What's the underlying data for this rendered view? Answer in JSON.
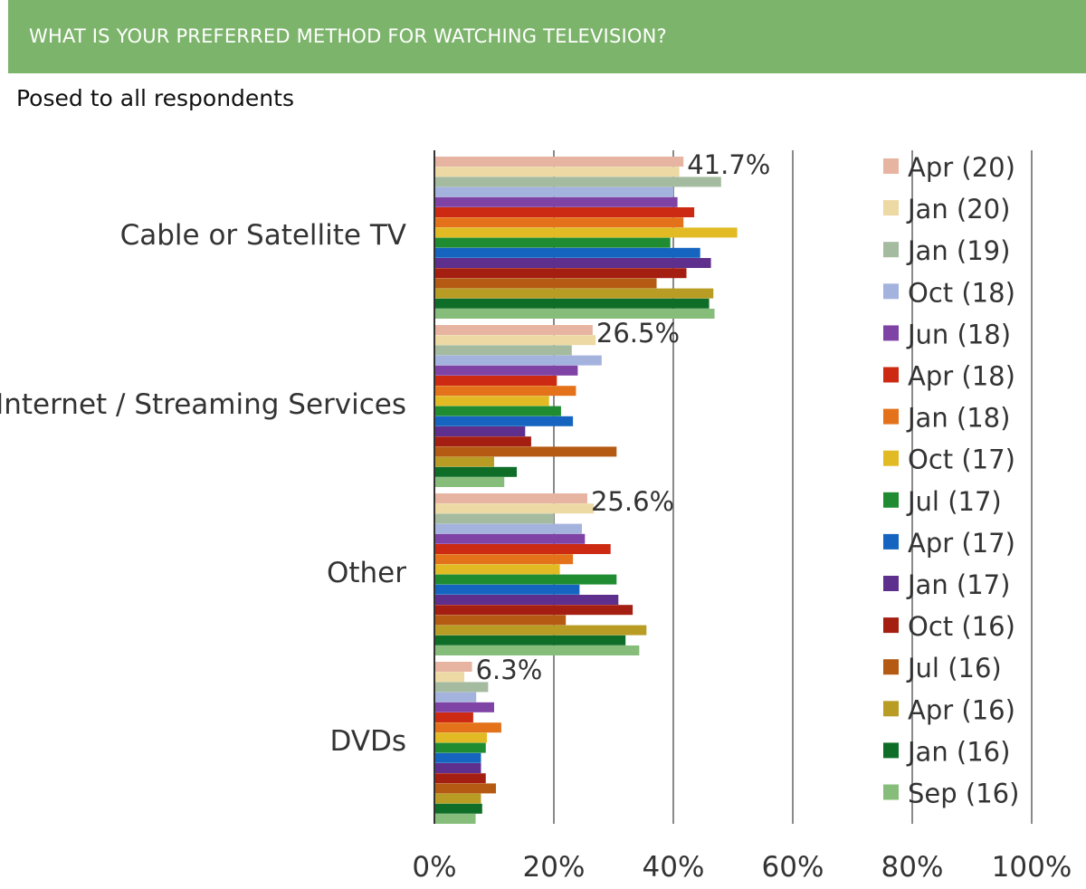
{
  "header": {
    "title": "WHAT IS YOUR PREFERRED METHOD FOR WATCHING TELEVISION?"
  },
  "subtitle": "Posed to all respondents",
  "chart_data": {
    "type": "bar",
    "orientation": "horizontal",
    "categories": [
      "Cable or Satellite TV",
      "Internet / Streaming Services",
      "Other",
      "DVDs"
    ],
    "xlim": [
      0,
      100
    ],
    "x_ticks": [
      "0%",
      "20%",
      "40%",
      "60%",
      "80%",
      "100%"
    ],
    "grid": true,
    "legend_position": "right",
    "data_labels": [
      "41.7%",
      "26.5%",
      "25.6%",
      "6.3%"
    ],
    "series": [
      {
        "name": "Apr (20)",
        "color": "#e8b4a2",
        "values": [
          41.7,
          26.5,
          25.6,
          6.3
        ]
      },
      {
        "name": "Jan (20)",
        "color": "#ecd9a4",
        "values": [
          41,
          27,
          26.7,
          5
        ]
      },
      {
        "name": "Jan (19)",
        "color": "#a5bb9f",
        "values": [
          48,
          23,
          20,
          9
        ]
      },
      {
        "name": "Oct (18)",
        "color": "#a4b2de",
        "values": [
          40,
          28,
          24.7,
          7
        ]
      },
      {
        "name": "Jun (18)",
        "color": "#7e43a5",
        "values": [
          40.7,
          24,
          25.2,
          10
        ]
      },
      {
        "name": "Apr (18)",
        "color": "#cc2a12",
        "values": [
          43.5,
          20.5,
          29.5,
          6.5
        ]
      },
      {
        "name": "Jan (18)",
        "color": "#e3721a",
        "values": [
          41.7,
          23.7,
          23.2,
          11.2
        ]
      },
      {
        "name": "Oct (17)",
        "color": "#e2bb24",
        "values": [
          50.7,
          19.2,
          21,
          8.8
        ]
      },
      {
        "name": "Jul (17)",
        "color": "#1f8c32",
        "values": [
          39.5,
          21.2,
          30.5,
          8.6
        ]
      },
      {
        "name": "Apr (17)",
        "color": "#1565c0",
        "values": [
          44.5,
          23.2,
          24.3,
          7.8
        ]
      },
      {
        "name": "Jan (17)",
        "color": "#5e2f8c",
        "values": [
          46.3,
          15.2,
          30.8,
          7.8
        ]
      },
      {
        "name": "Oct (16)",
        "color": "#a51e12",
        "values": [
          42.2,
          16.2,
          33.2,
          8.6
        ]
      },
      {
        "name": "Jul (16)",
        "color": "#b55a12",
        "values": [
          37.2,
          30.5,
          22,
          10.3
        ]
      },
      {
        "name": "Apr (16)",
        "color": "#b89c24",
        "values": [
          46.7,
          10,
          35.5,
          7.8
        ]
      },
      {
        "name": "Jan (16)",
        "color": "#0e6e28",
        "values": [
          46,
          13.8,
          32,
          8
        ]
      },
      {
        "name": "Sep (16)",
        "color": "#87bd7b",
        "values": [
          46.9,
          11.7,
          34.3,
          6.9
        ]
      }
    ]
  }
}
